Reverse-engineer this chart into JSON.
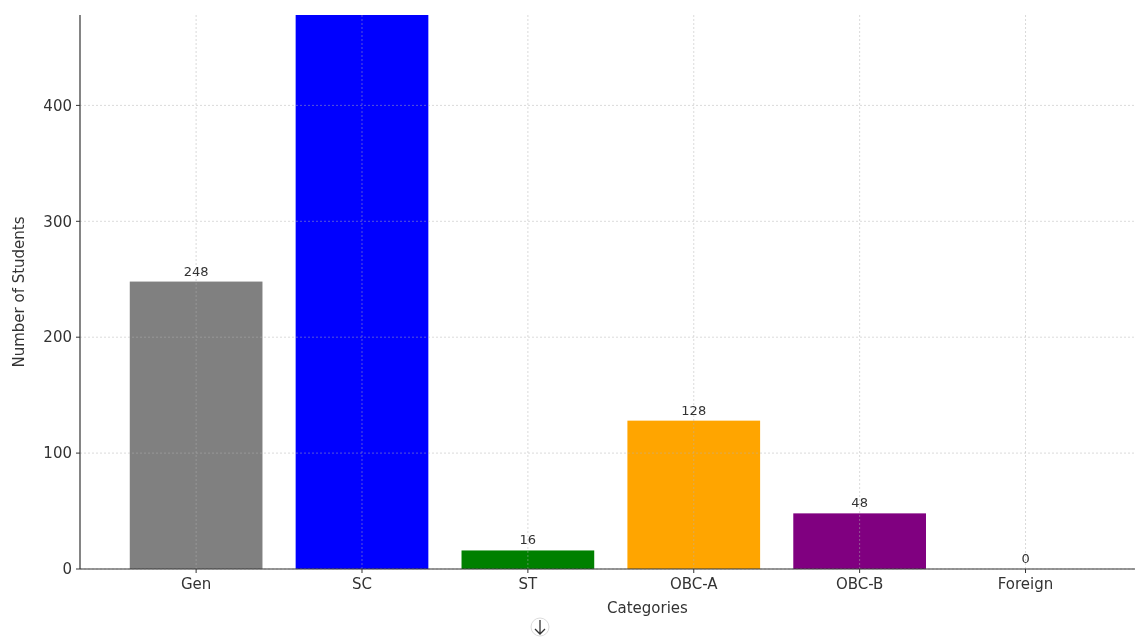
{
  "chart_data": {
    "type": "bar",
    "xlabel": "Categories",
    "ylabel": "Number of Students",
    "categories": [
      "Gen",
      "SC",
      "ST",
      "OBC-A",
      "OBC-B",
      "Foreign"
    ],
    "values": [
      248,
      478,
      16,
      128,
      48,
      0
    ],
    "colors": [
      "#808080",
      "#0000ff",
      "#008000",
      "#ffa500",
      "#800080",
      "#800080"
    ],
    "value_labels": [
      "248",
      null,
      "16",
      "128",
      "48",
      "0"
    ],
    "ylim": [
      0,
      478
    ],
    "yticks": [
      0,
      100,
      200,
      300,
      400
    ],
    "grid": true
  }
}
